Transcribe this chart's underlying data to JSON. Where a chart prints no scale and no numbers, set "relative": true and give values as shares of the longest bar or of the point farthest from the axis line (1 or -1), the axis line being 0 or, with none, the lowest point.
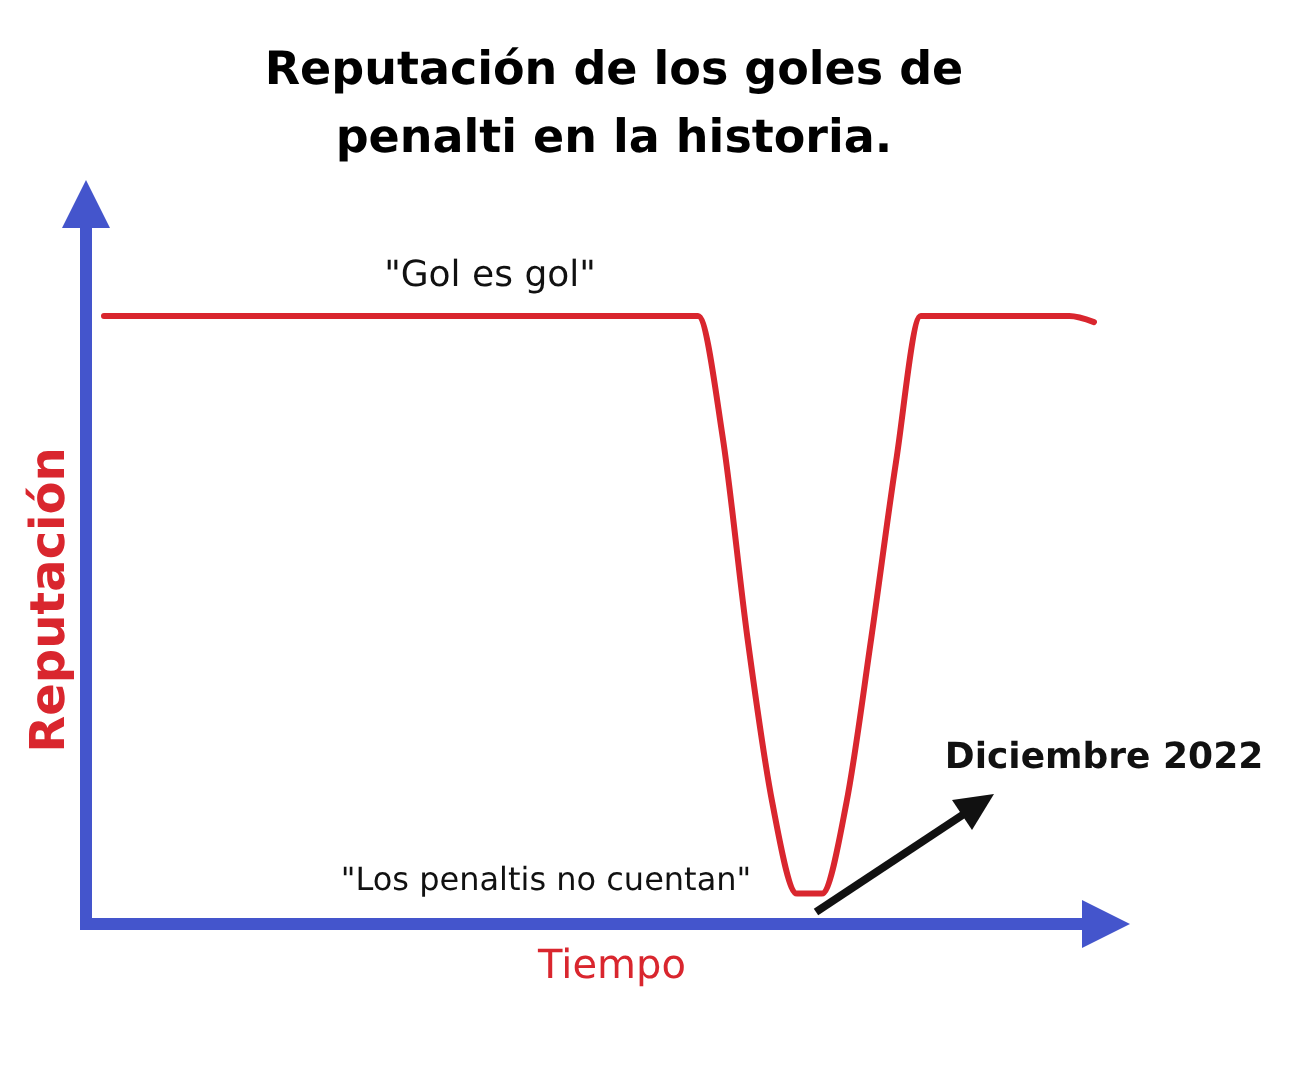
{
  "chart_data": {
    "type": "line",
    "title": "Reputación de los goles de penalti en la historia.",
    "xlabel": "Tiempo",
    "ylabel": "Reputación",
    "relative": true,
    "categories": [
      null,
      null,
      null,
      null,
      null,
      null,
      null,
      null,
      null,
      null,
      null,
      null,
      null,
      null,
      null,
      null,
      null,
      null,
      null,
      null,
      null,
      null,
      null,
      null,
      null,
      null,
      null,
      null,
      null,
      null,
      null,
      null,
      null,
      null,
      null,
      null,
      null,
      null,
      null,
      null,
      null
    ],
    "series": [
      {
        "color": "#d9262e",
        "values": [
          1,
          1,
          1,
          1,
          1,
          1,
          1,
          1,
          1,
          1,
          1,
          1,
          1,
          1,
          1,
          1,
          1,
          1,
          1,
          1,
          1,
          1,
          1,
          1,
          1,
          0.8,
          0.47,
          0.2,
          0.05,
          0.05,
          0.2,
          0.47,
          0.76,
          1,
          1,
          1,
          1,
          1,
          1,
          1,
          0.99
        ]
      }
    ],
    "annotations": [
      "\"Gol es gol\"",
      "\"Los penaltis no cuentan\"",
      "Diciembre 2022"
    ],
    "marker": "none",
    "line_style": "solid"
  }
}
